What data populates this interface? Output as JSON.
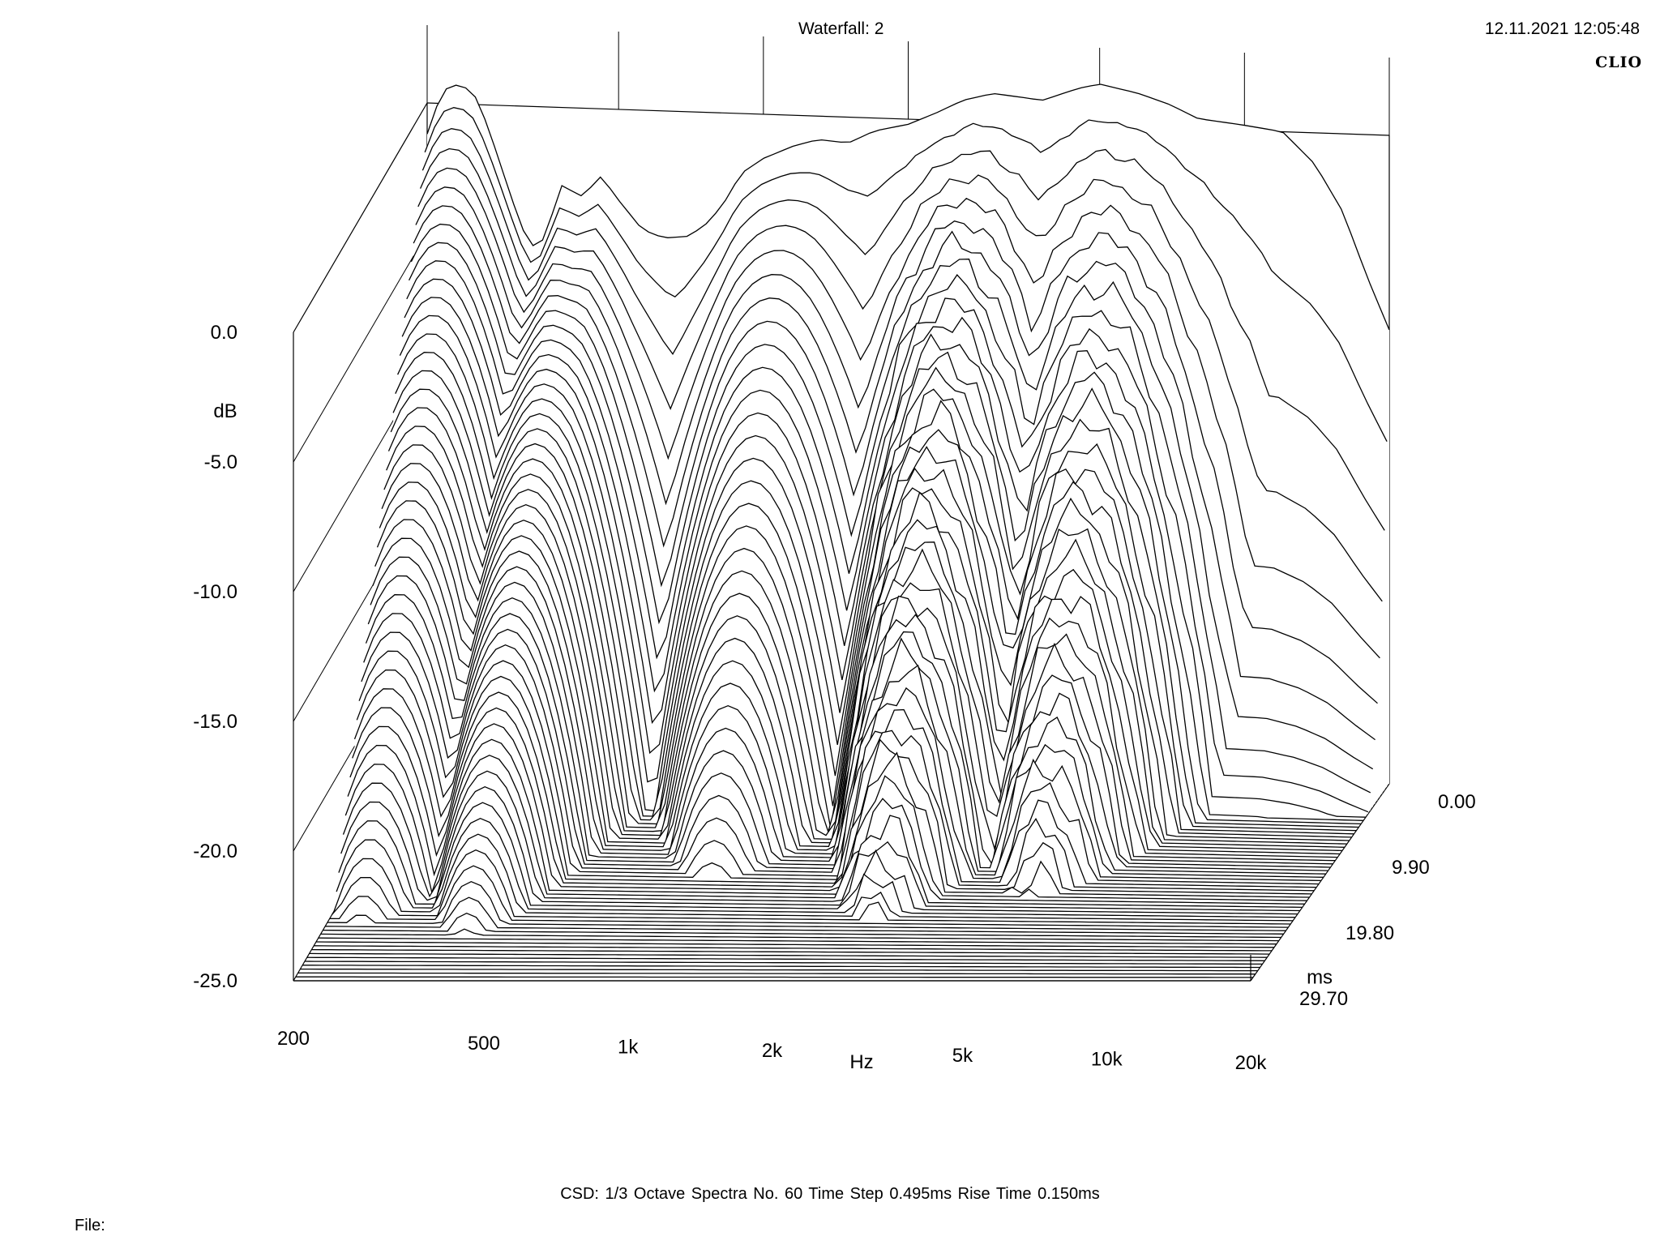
{
  "header": {
    "title": "Waterfall: 2",
    "timestamp": "12.11.2021 12:05:48",
    "brand": "CLIO"
  },
  "footer": {
    "info": "CSD:   1/3 Octave   Spectra No. 60   Time Step 0.495ms   Rise Time 0.150ms",
    "file_label": "File:"
  },
  "chart_data": {
    "type": "waterfall",
    "x_axis": {
      "label": "Hz",
      "scale": "log",
      "range": [
        200,
        20000
      ],
      "ticks": [
        {
          "value": 200,
          "label": "200"
        },
        {
          "value": 500,
          "label": "500"
        },
        {
          "value": 1000,
          "label": "1k"
        },
        {
          "value": 2000,
          "label": "2k"
        },
        {
          "value": 5000,
          "label": "5k"
        },
        {
          "value": 10000,
          "label": "10k"
        },
        {
          "value": 20000,
          "label": "20k"
        }
      ]
    },
    "y_axis": {
      "label": "dB",
      "range": [
        -25,
        0
      ],
      "ticks": [
        "0.0",
        "-5.0",
        "-10.0",
        "-15.0",
        "-20.0",
        "-25.0"
      ]
    },
    "z_axis": {
      "label": "ms",
      "range": [
        0,
        29.7
      ],
      "ticks": [
        "0.00",
        "9.90",
        "19.80",
        "29.70"
      ]
    },
    "spectra_count": 60,
    "time_step_ms": 0.495,
    "first_spectrum_db": [
      {
        "hz": 200,
        "db": -1.2
      },
      {
        "hz": 215,
        "db": 0.5
      },
      {
        "hz": 235,
        "db": 0.8
      },
      {
        "hz": 255,
        "db": 0.2
      },
      {
        "hz": 275,
        "db": -1.5
      },
      {
        "hz": 300,
        "db": -3.6
      },
      {
        "hz": 320,
        "db": -5.0
      },
      {
        "hz": 340,
        "db": -5.6
      },
      {
        "hz": 360,
        "db": -4.4
      },
      {
        "hz": 380,
        "db": -3.0
      },
      {
        "hz": 420,
        "db": -3.4
      },
      {
        "hz": 460,
        "db": -2.6
      },
      {
        "hz": 500,
        "db": -3.5
      },
      {
        "hz": 560,
        "db": -4.6
      },
      {
        "hz": 620,
        "db": -4.9
      },
      {
        "hz": 700,
        "db": -4.8
      },
      {
        "hz": 760,
        "db": -4.3
      },
      {
        "hz": 820,
        "db": -3.6
      },
      {
        "hz": 900,
        "db": -2.3
      },
      {
        "hz": 1000,
        "db": -1.7
      },
      {
        "hz": 1150,
        "db": -1.2
      },
      {
        "hz": 1300,
        "db": -0.9
      },
      {
        "hz": 1500,
        "db": -1.0
      },
      {
        "hz": 1700,
        "db": -0.5
      },
      {
        "hz": 2000,
        "db": -0.2
      },
      {
        "hz": 2300,
        "db": 0.3
      },
      {
        "hz": 2600,
        "db": 0.8
      },
      {
        "hz": 3000,
        "db": 1.1
      },
      {
        "hz": 3400,
        "db": 1.0
      },
      {
        "hz": 3800,
        "db": 0.9
      },
      {
        "hz": 4500,
        "db": 1.4
      },
      {
        "hz": 5000,
        "db": 1.6
      },
      {
        "hz": 6000,
        "db": 1.3
      },
      {
        "hz": 7000,
        "db": 0.9
      },
      {
        "hz": 8000,
        "db": 0.4
      },
      {
        "hz": 10000,
        "db": 0.2
      },
      {
        "hz": 12000,
        "db": 0.0
      },
      {
        "hz": 14000,
        "db": -1.2
      },
      {
        "hz": 16000,
        "db": -3.0
      },
      {
        "hz": 18000,
        "db": -5.5
      },
      {
        "hz": 20000,
        "db": -7.5
      }
    ],
    "peaks": [
      {
        "hz": 235,
        "db": 0.8,
        "decay_ms": 20
      },
      {
        "hz": 400,
        "db": -3.0,
        "decay_ms": 25
      },
      {
        "hz": 1100,
        "db": -2.0,
        "decay_ms": 16
      },
      {
        "hz": 2700,
        "db": -0.5,
        "decay_ms": 20
      },
      {
        "hz": 5400,
        "db": -1.0,
        "decay_ms": 17
      }
    ],
    "grid": true
  }
}
